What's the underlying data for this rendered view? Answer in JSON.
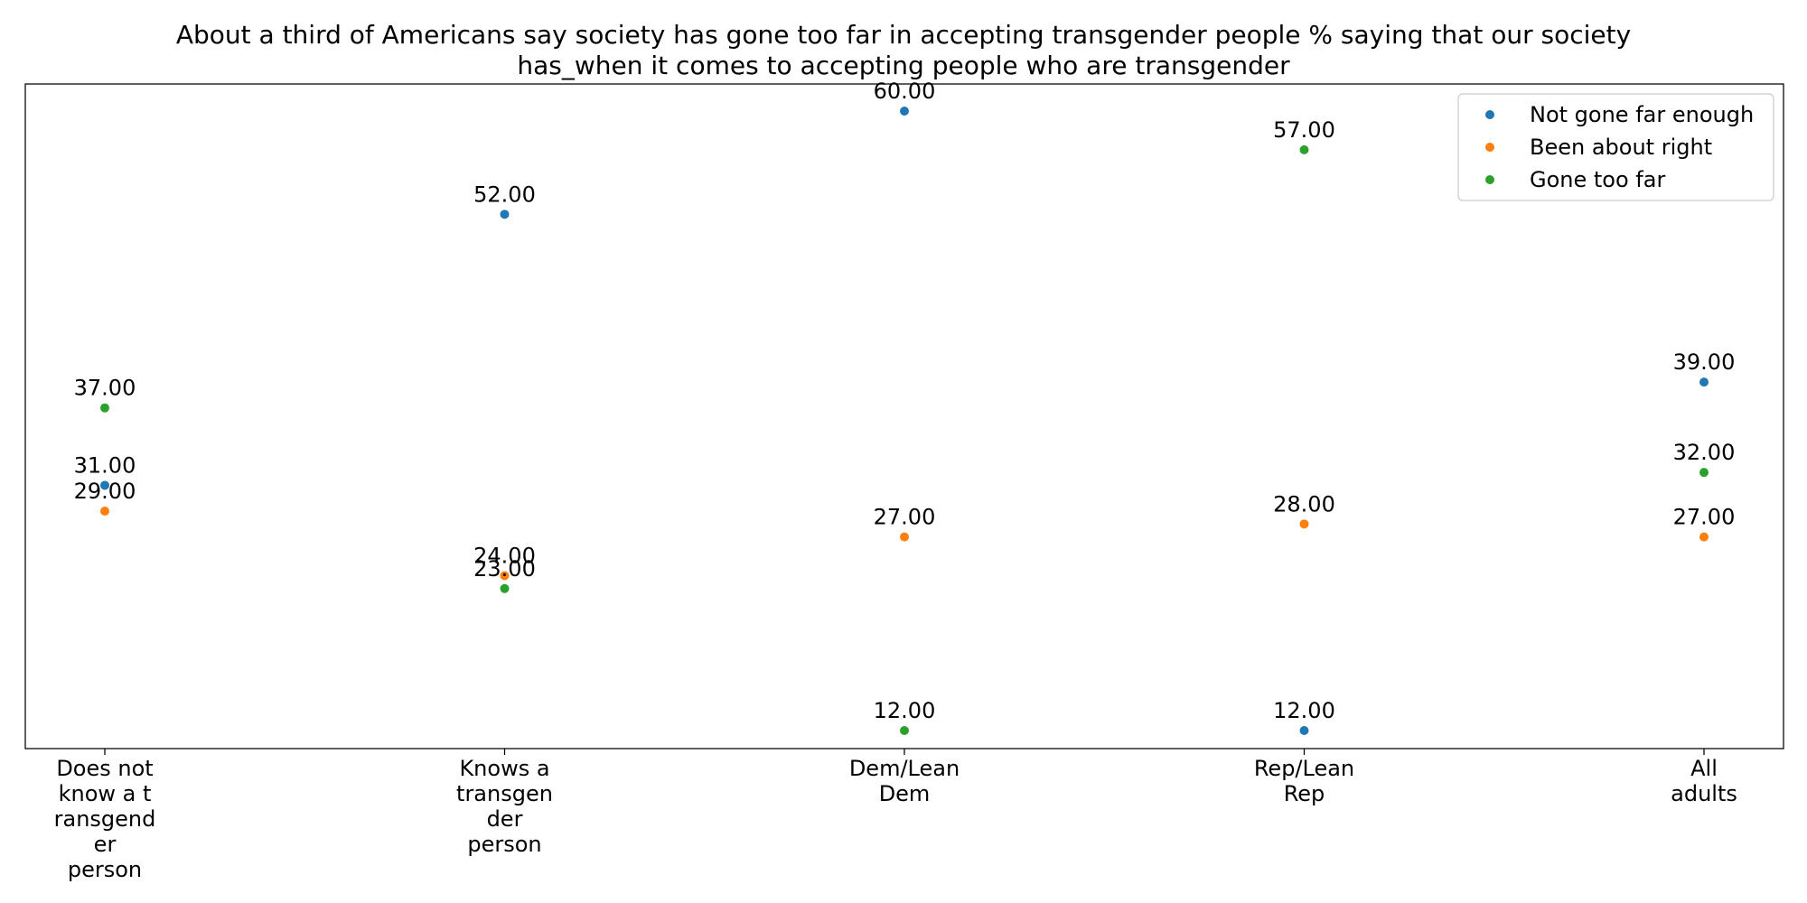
{
  "chart_data": {
    "type": "scatter",
    "title": "About a third of Americans say society has gone too far in accepting transgender people % saying that our society\nhas_when it comes to accepting people who are transgender",
    "xlabel": "",
    "ylabel": "",
    "categories": [
      [
        "Does not",
        "know a t",
        "ransgend",
        "er",
        "person"
      ],
      [
        "Knows a",
        "transgen",
        "der",
        "person"
      ],
      [
        "Dem/Lean",
        "Dem"
      ],
      [
        "Rep/Lean",
        "Rep"
      ],
      [
        "All",
        "adults"
      ]
    ],
    "series": [
      {
        "name": "Not gone far enough",
        "color": "#1f77b4",
        "values": [
          31,
          52,
          60,
          12,
          39
        ]
      },
      {
        "name": "Been about right",
        "color": "#ff7f0e",
        "values": [
          29,
          24,
          27,
          28,
          27
        ]
      },
      {
        "name": "Gone too far",
        "color": "#2ca02c",
        "values": [
          37,
          23,
          12,
          57,
          32
        ]
      }
    ],
    "value_format": "2dp",
    "ylim": [
      10.6,
      62.1
    ],
    "y_axis_visible": false,
    "grid": false,
    "legend_position": "top-right"
  }
}
